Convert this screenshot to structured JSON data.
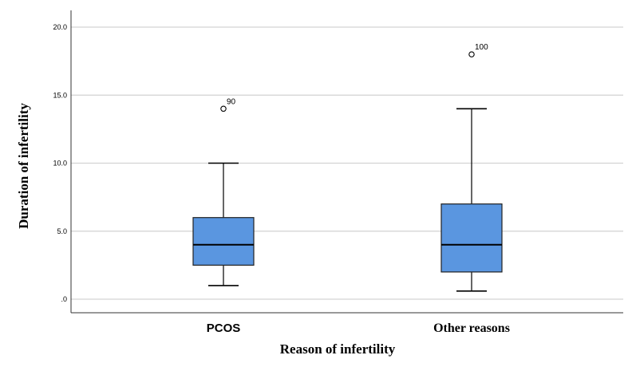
{
  "chart_data": {
    "type": "boxplot",
    "title": "",
    "xlabel": "Reason of infertility",
    "ylabel": "Duration of infertility",
    "ylim": [
      -1,
      21
    ],
    "yticks": [
      {
        "value": 0,
        "label": ".0"
      },
      {
        "value": 5,
        "label": "5.0"
      },
      {
        "value": 10,
        "label": "10.0"
      },
      {
        "value": 15,
        "label": "15.0"
      },
      {
        "value": 20,
        "label": "20.0"
      }
    ],
    "grid": true,
    "box_color": "#5a96e0",
    "grid_color": "#d3d3d3",
    "categories": [
      "PCOS",
      "Other reasons"
    ],
    "boxes": [
      {
        "category": "PCOS",
        "whisker_low": 1,
        "q1": 2.5,
        "median": 4,
        "q3": 6,
        "whisker_high": 10,
        "outliers": [
          {
            "value": 14,
            "label": "90"
          }
        ]
      },
      {
        "category": "Other reasons",
        "whisker_low": 0.6,
        "q1": 2,
        "median": 4,
        "q3": 7,
        "whisker_high": 14,
        "outliers": [
          {
            "value": 18,
            "label": "100"
          }
        ]
      }
    ]
  }
}
